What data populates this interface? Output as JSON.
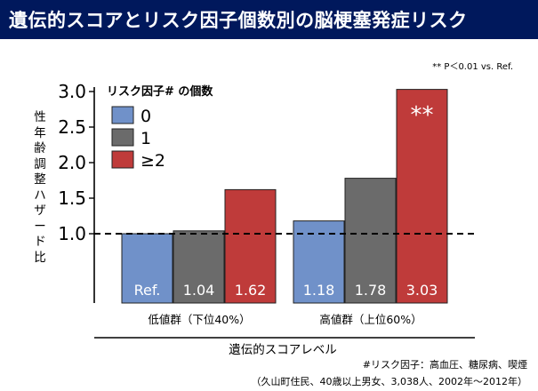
{
  "title": "遺伝的スコアとリスク因子個数別の脳梗塞発症リスク",
  "significance_note": "** P＜0.01 vs. Ref.",
  "footnotes": {
    "risk_factors": "#リスク因子：高血圧、糖尿病、喫煙",
    "cohort": "（久山町住民、40歳以上男女、3,038人、2002年〜2012年）"
  },
  "colors": {
    "title_bar": "#00185c",
    "series_0": "#7091c9",
    "series_1": "#6b6b6b",
    "series_2": "#bf3b3a"
  },
  "chart_data": {
    "type": "bar",
    "ylabel": "性年齢調整ハザード比",
    "xlabel": "遺伝的スコアレベル",
    "ylim": [
      0,
      3.0
    ],
    "yticks": [
      "1.0",
      "1.5",
      "2.0",
      "2.5",
      "3.0"
    ],
    "reference_line": 1.0,
    "legend_title": "リスク因子# の個数",
    "legend_position": "top-left",
    "categories": [
      "低値群（下位40%）",
      "高値群（上位60%）"
    ],
    "series": [
      {
        "name": "0",
        "values": [
          1.0,
          1.18
        ],
        "labels": [
          "Ref.",
          "1.18"
        ]
      },
      {
        "name": "1",
        "values": [
          1.04,
          1.78
        ],
        "labels": [
          "1.04",
          "1.78"
        ]
      },
      {
        "name": "≥2",
        "values": [
          1.62,
          3.03
        ],
        "labels": [
          "1.62",
          "3.03"
        ]
      }
    ],
    "annotations": [
      {
        "category": 1,
        "series": 2,
        "text": "**"
      }
    ]
  }
}
